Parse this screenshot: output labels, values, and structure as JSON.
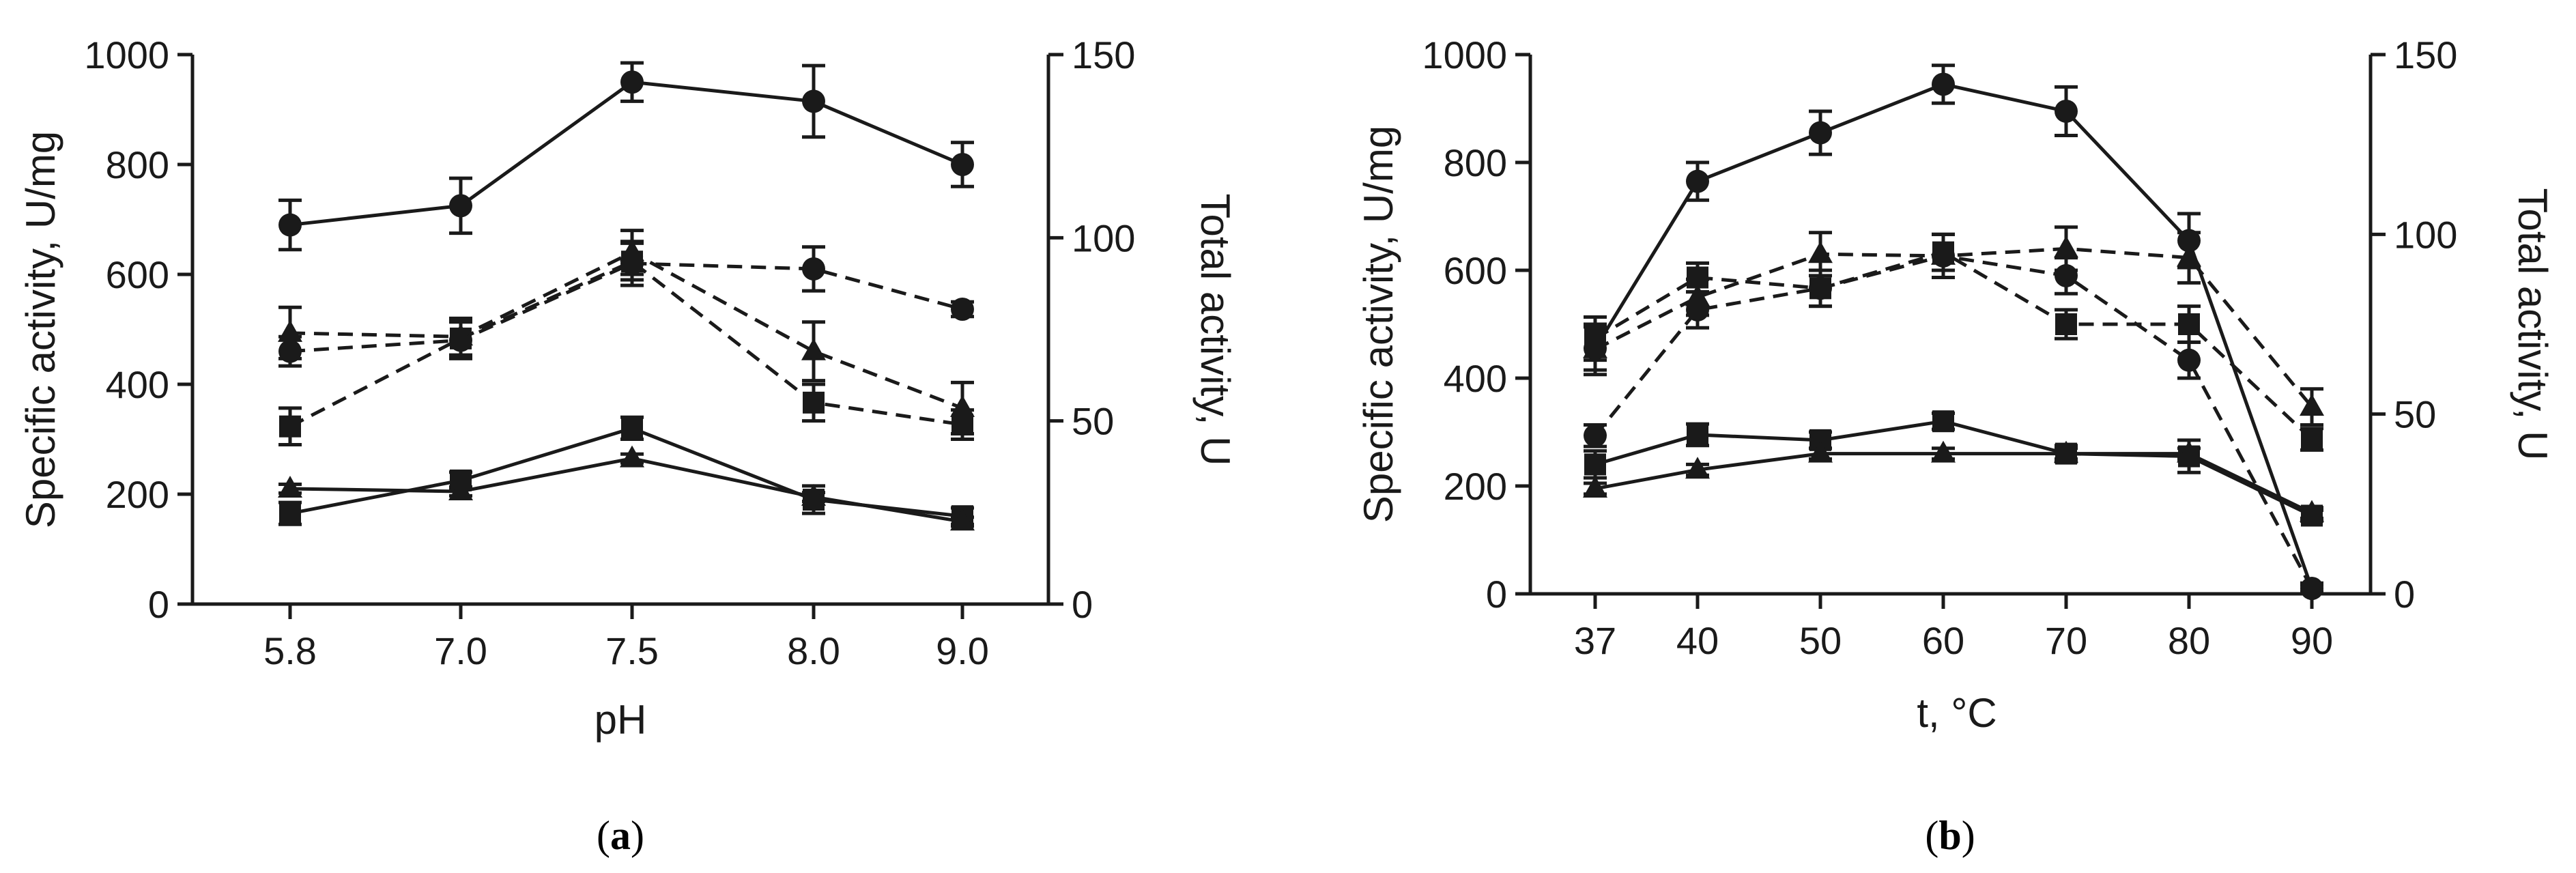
{
  "chart_data": [
    {
      "type": "line",
      "panel_label": "(a)",
      "panel_letter": "a",
      "xlabel": "pH",
      "ylabel": "Specific activity, U/mg",
      "y2label": "Total activity, U",
      "x_categories": [
        "5.8",
        "7.0",
        "7.5",
        "8.0",
        "9.0"
      ],
      "ylim": [
        0,
        1000
      ],
      "y_ticks": [
        "0",
        "200",
        "400",
        "600",
        "800",
        "1000"
      ],
      "y2lim": [
        0,
        150
      ],
      "y2_ticks": [
        "0",
        "50",
        "100",
        "150"
      ],
      "series": [
        {
          "name": "circle-solid",
          "marker": "circle",
          "line": "solid",
          "axis": "left",
          "values": [
            690,
            725,
            950,
            915,
            800
          ],
          "errors": [
            45,
            50,
            35,
            65,
            40
          ]
        },
        {
          "name": "square-solid",
          "marker": "square",
          "line": "solid",
          "axis": "left",
          "values": [
            165,
            225,
            320,
            190,
            160
          ],
          "errors": [
            20,
            15,
            20,
            25,
            15
          ]
        },
        {
          "name": "triangle-solid",
          "marker": "triangle",
          "line": "solid",
          "axis": "left",
          "values": [
            210,
            205,
            265,
            195,
            150
          ],
          "errors": [
            8,
            8,
            8,
            8,
            8
          ]
        },
        {
          "name": "circle-dashed",
          "marker": "circle",
          "line": "dashed",
          "axis": "right",
          "values": [
            69,
            72,
            93,
            91.5,
            80.5
          ],
          "errors": [
            4,
            5,
            6,
            6,
            2
          ]
        },
        {
          "name": "square-dashed",
          "marker": "square",
          "line": "dashed",
          "axis": "right",
          "values": [
            48.5,
            72.5,
            93.5,
            55,
            49
          ],
          "errors": [
            5,
            5,
            5,
            5,
            4
          ]
        },
        {
          "name": "triangle-dashed",
          "marker": "triangle",
          "line": "dashed",
          "axis": "right",
          "values": [
            74,
            73,
            96,
            69,
            53.5
          ],
          "errors": [
            7,
            5,
            6,
            8,
            7
          ]
        }
      ]
    },
    {
      "type": "line",
      "panel_label": "(b)",
      "panel_letter": "b",
      "xlabel": "t, °C",
      "ylabel": "Specific activity, U/mg",
      "y2label": "Total activity, U",
      "x_categories": [
        "37",
        "40",
        "50",
        "60",
        "70",
        "80",
        "90"
      ],
      "ylim": [
        0,
        1000
      ],
      "y_ticks": [
        "0",
        "200",
        "400",
        "600",
        "800",
        "1000"
      ],
      "y2lim": [
        0,
        150
      ],
      "y2_ticks": [
        "0",
        "50",
        "100",
        "150"
      ],
      "series": [
        {
          "name": "circle-solid",
          "marker": "circle",
          "line": "solid",
          "axis": "left",
          "values": [
            455,
            765,
            855,
            945,
            895,
            655,
            10
          ],
          "errors": [
            40,
            35,
            40,
            35,
            45,
            50,
            10
          ]
        },
        {
          "name": "square-solid",
          "marker": "square",
          "line": "solid",
          "axis": "left",
          "values": [
            240,
            295,
            285,
            320,
            260,
            255,
            145
          ],
          "errors": [
            25,
            20,
            15,
            15,
            15,
            30,
            10
          ]
        },
        {
          "name": "triangle-solid",
          "marker": "triangle",
          "line": "solid",
          "axis": "left",
          "values": [
            195,
            230,
            260,
            260,
            260,
            260,
            150
          ],
          "errors": [
            10,
            10,
            10,
            10,
            10,
            10,
            10
          ]
        },
        {
          "name": "circle-dashed",
          "marker": "circle",
          "line": "dashed",
          "axis": "right",
          "values": [
            44,
            79,
            85,
            94,
            88.5,
            65,
            1.5
          ],
          "errors": [
            3,
            5,
            5,
            6,
            5,
            5,
            1
          ]
        },
        {
          "name": "square-dashed",
          "marker": "square",
          "line": "dashed",
          "axis": "right",
          "values": [
            71,
            88,
            85,
            95,
            75,
            75,
            43
          ],
          "errors": [
            6,
            4,
            5,
            5,
            4,
            5,
            3
          ]
        },
        {
          "name": "triangle-dashed",
          "marker": "triangle",
          "line": "dashed",
          "axis": "right",
          "values": [
            68,
            82.5,
            94.5,
            94,
            96,
            93.5,
            52
          ],
          "errors": [
            7,
            5,
            6,
            6,
            6,
            7,
            5
          ]
        }
      ]
    }
  ]
}
